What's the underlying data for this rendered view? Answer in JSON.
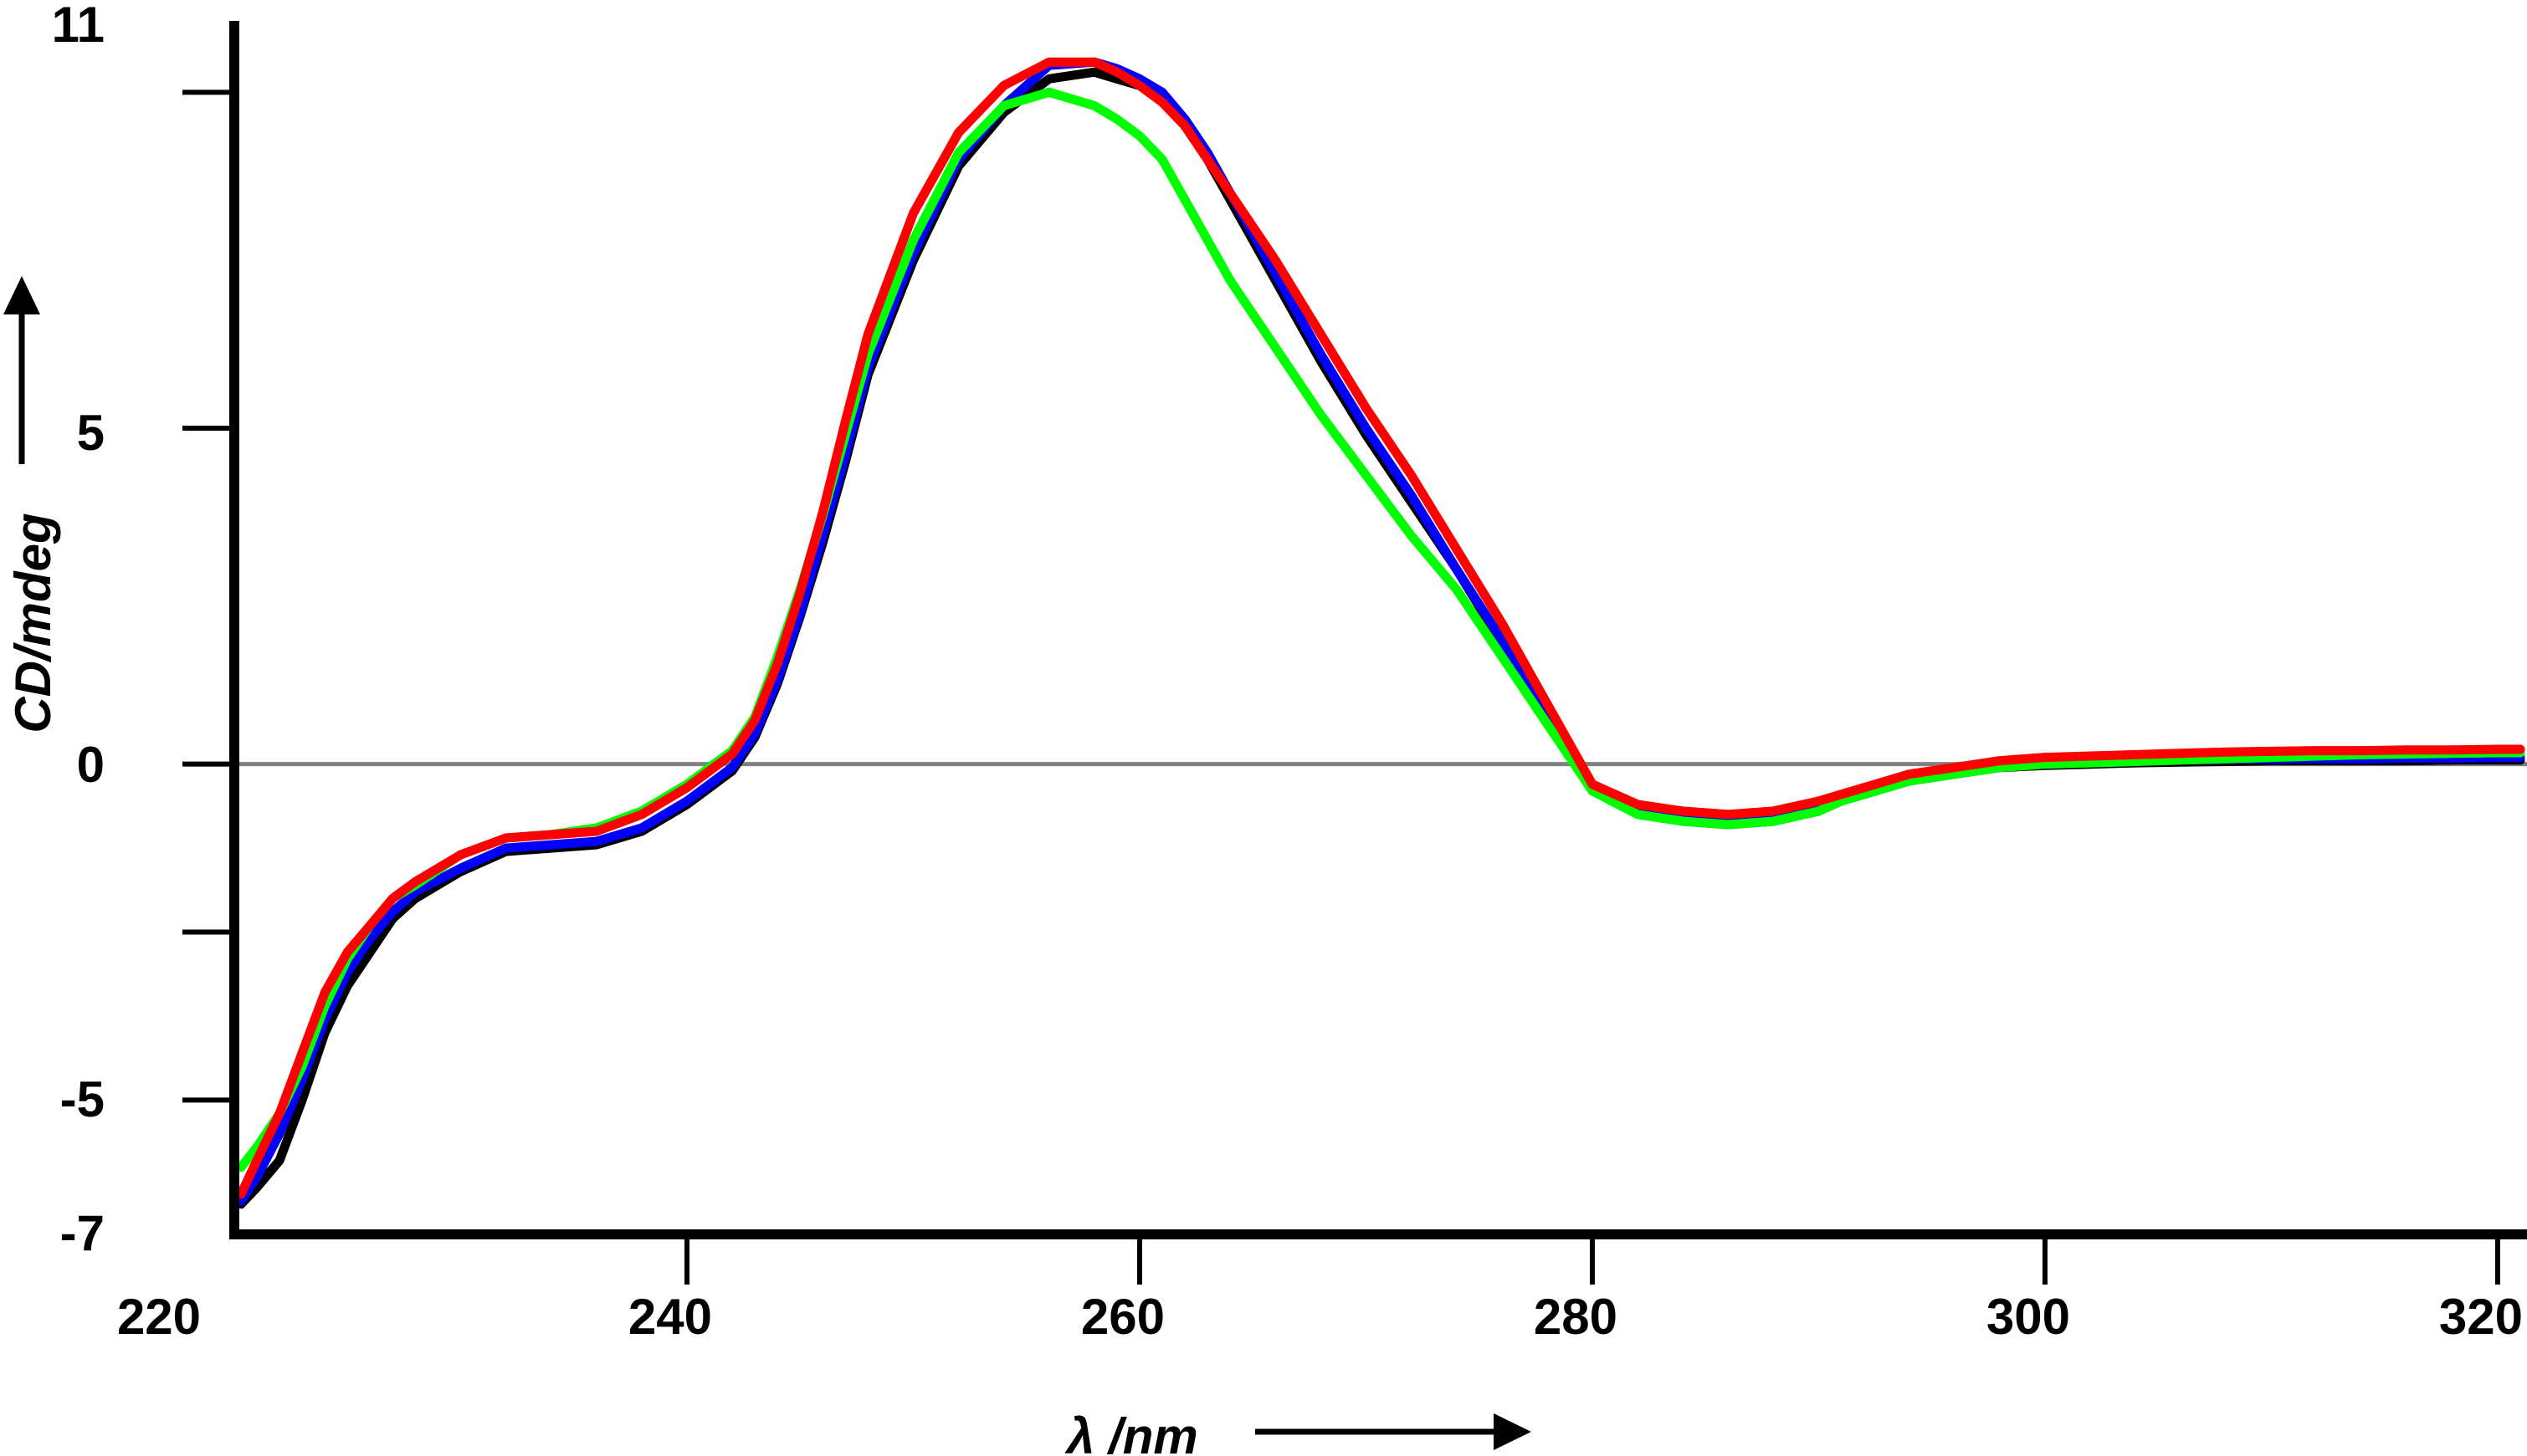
{
  "chart_data": {
    "type": "line",
    "xlabel": "λ /nm",
    "ylabel": "CD/mdeg",
    "xlim": [
      220,
      321
    ],
    "ylim": [
      -7,
      11
    ],
    "x_ticks": [
      220,
      240,
      260,
      280,
      300,
      320
    ],
    "y_ticks": [
      -7,
      -5,
      0,
      5,
      11
    ],
    "y_minor_ticks": [
      -2.5,
      10
    ],
    "zero_line": true,
    "grid": false,
    "series": [
      {
        "color": "#000000",
        "x": [
          220.3,
          221,
          222,
          223,
          224,
          225,
          226,
          227,
          228,
          230,
          232,
          234,
          236,
          238,
          240,
          242,
          243,
          244,
          245,
          246,
          247,
          248,
          250,
          252,
          254,
          256,
          258,
          259,
          260,
          261,
          262,
          263,
          264,
          266,
          268,
          270,
          272,
          274,
          276,
          278,
          280,
          282,
          284,
          286,
          288,
          290,
          291,
          292,
          293,
          294,
          296,
          297,
          298,
          300,
          302,
          304,
          306,
          308,
          310,
          312,
          314,
          316,
          318,
          320,
          321
        ],
        "y": [
          -6.55,
          -6.3,
          -5.9,
          -5.0,
          -4.0,
          -3.3,
          -2.8,
          -2.3,
          -2.0,
          -1.6,
          -1.3,
          -1.25,
          -1.2,
          -1.0,
          -0.6,
          -0.1,
          0.4,
          1.2,
          2.2,
          3.3,
          4.5,
          5.8,
          7.5,
          8.9,
          9.7,
          10.2,
          10.3,
          10.2,
          10.1,
          9.9,
          9.5,
          9.0,
          8.4,
          7.2,
          6.0,
          4.9,
          3.9,
          2.9,
          1.8,
          0.7,
          -0.4,
          -0.7,
          -0.85,
          -0.9,
          -0.85,
          -0.7,
          -0.55,
          -0.45,
          -0.35,
          -0.25,
          -0.15,
          -0.1,
          -0.05,
          -0.02,
          0.0,
          0.02,
          0.03,
          0.04,
          0.05,
          0.05,
          0.05,
          0.05,
          0.06,
          0.06,
          0.06
        ]
      },
      {
        "color": "#0000ff",
        "x": [
          220.3,
          221,
          222,
          223,
          224,
          225,
          226,
          227,
          228,
          230,
          232,
          234,
          236,
          238,
          240,
          242,
          243,
          244,
          245,
          246,
          247,
          248,
          250,
          252,
          254,
          256,
          258,
          259,
          260,
          261,
          262,
          263,
          264,
          266,
          268,
          270,
          272,
          274,
          276,
          278,
          280,
          282,
          284,
          286,
          288,
          290,
          291,
          292,
          293,
          294,
          296,
          297,
          298,
          300,
          302,
          304,
          306,
          308,
          310,
          312,
          314,
          316,
          318,
          320,
          321
        ],
        "y": [
          -6.5,
          -6.15,
          -5.5,
          -4.7,
          -3.8,
          -3.1,
          -2.6,
          -2.2,
          -1.9,
          -1.55,
          -1.25,
          -1.2,
          -1.15,
          -0.95,
          -0.55,
          -0.05,
          0.45,
          1.25,
          2.25,
          3.4,
          4.6,
          5.9,
          7.6,
          9.0,
          9.8,
          10.4,
          10.45,
          10.35,
          10.2,
          10.0,
          9.6,
          9.1,
          8.5,
          7.3,
          6.1,
          5.0,
          4.0,
          2.9,
          1.85,
          0.75,
          -0.35,
          -0.65,
          -0.75,
          -0.8,
          -0.75,
          -0.6,
          -0.5,
          -0.4,
          -0.3,
          -0.2,
          -0.1,
          -0.05,
          0.0,
          0.02,
          0.04,
          0.05,
          0.06,
          0.07,
          0.08,
          0.08,
          0.08,
          0.09,
          0.09,
          0.1,
          0.1
        ]
      },
      {
        "color": "#00ff00",
        "x": [
          220.3,
          221,
          222,
          223,
          224,
          225,
          226,
          227,
          228,
          230,
          232,
          234,
          236,
          238,
          240,
          242,
          243,
          244,
          245,
          246,
          247,
          248,
          250,
          252,
          254,
          256,
          258,
          259,
          260,
          261,
          262,
          263,
          264,
          266,
          268,
          270,
          272,
          274,
          276,
          278,
          280,
          282,
          284,
          286,
          288,
          290,
          291,
          292,
          293,
          294,
          296,
          297,
          298,
          300,
          302,
          304,
          306,
          308,
          310,
          312,
          314,
          316,
          318,
          320,
          321
        ],
        "y": [
          -6.0,
          -5.7,
          -5.2,
          -4.5,
          -3.6,
          -2.9,
          -2.4,
          -2.0,
          -1.8,
          -1.35,
          -1.1,
          -1.05,
          -0.95,
          -0.7,
          -0.3,
          0.2,
          0.7,
          1.6,
          2.6,
          3.7,
          4.9,
          6.1,
          7.8,
          9.1,
          9.8,
          10.0,
          9.8,
          9.6,
          9.35,
          9.0,
          8.4,
          7.8,
          7.2,
          6.2,
          5.2,
          4.3,
          3.4,
          2.6,
          1.6,
          0.6,
          -0.4,
          -0.75,
          -0.85,
          -0.9,
          -0.85,
          -0.7,
          -0.55,
          -0.45,
          -0.35,
          -0.25,
          -0.15,
          -0.1,
          -0.05,
          0.0,
          0.02,
          0.04,
          0.06,
          0.08,
          0.1,
          0.12,
          0.14,
          0.15,
          0.16,
          0.17,
          0.17
        ]
      },
      {
        "color": "#ff0000",
        "x": [
          220.3,
          221,
          222,
          223,
          224,
          225,
          226,
          227,
          228,
          230,
          232,
          234,
          236,
          238,
          240,
          242,
          243,
          244,
          245,
          246,
          247,
          248,
          250,
          252,
          254,
          256,
          258,
          259,
          260,
          261,
          262,
          263,
          264,
          266,
          268,
          270,
          272,
          274,
          276,
          278,
          280,
          282,
          284,
          286,
          288,
          290,
          291,
          292,
          293,
          294,
          296,
          297,
          298,
          300,
          302,
          304,
          306,
          308,
          310,
          312,
          314,
          316,
          318,
          320,
          321
        ],
        "y": [
          -6.4,
          -5.9,
          -5.2,
          -4.3,
          -3.4,
          -2.8,
          -2.4,
          -2.0,
          -1.75,
          -1.35,
          -1.1,
          -1.05,
          -1.0,
          -0.75,
          -0.35,
          0.15,
          0.65,
          1.5,
          2.55,
          3.75,
          5.1,
          6.4,
          8.2,
          9.4,
          10.1,
          10.45,
          10.45,
          10.3,
          10.1,
          9.85,
          9.5,
          9.0,
          8.5,
          7.5,
          6.4,
          5.3,
          4.3,
          3.2,
          2.1,
          0.9,
          -0.3,
          -0.6,
          -0.7,
          -0.75,
          -0.7,
          -0.55,
          -0.45,
          -0.35,
          -0.25,
          -0.15,
          -0.05,
          0.0,
          0.05,
          0.1,
          0.12,
          0.14,
          0.16,
          0.18,
          0.19,
          0.2,
          0.2,
          0.21,
          0.21,
          0.22,
          0.22
        ]
      }
    ]
  }
}
